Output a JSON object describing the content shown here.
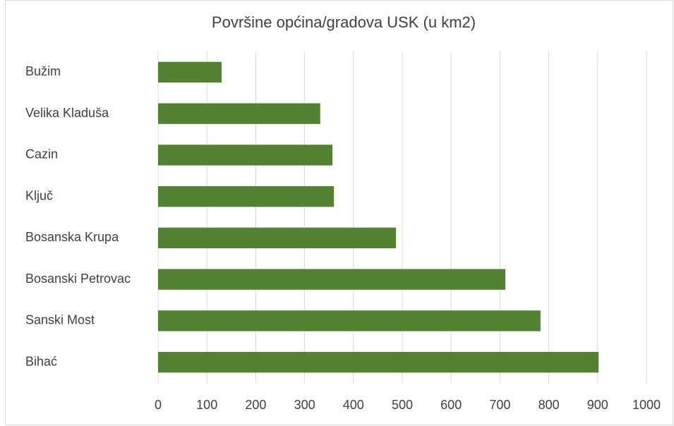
{
  "chart_data": {
    "type": "barh",
    "title": "Površine općina/gradova USK (u km2)",
    "categories": [
      "Bužim",
      "Velika Kladuša",
      "Cazin",
      "Ključ",
      "Bosanska Krupa",
      "Bosanski Petrovac",
      "Sanski Most",
      "Bihać"
    ],
    "values": [
      130,
      332,
      357,
      360,
      487,
      711,
      783,
      902
    ],
    "color": "#548235",
    "xlim": [
      0,
      1000
    ],
    "xticks": [
      0,
      100,
      200,
      300,
      400,
      500,
      600,
      700,
      800,
      900,
      1000
    ],
    "grid": true
  }
}
